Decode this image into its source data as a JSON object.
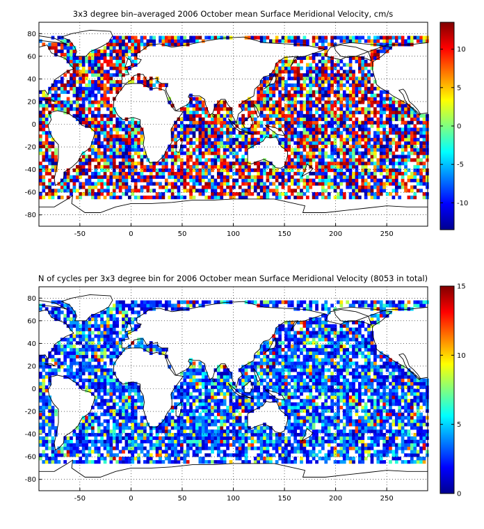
{
  "chart_data": [
    {
      "type": "heatmap",
      "title": "3x3 degree bin–averaged 2006 October mean Surface Meridional Velocity, cm/s",
      "xlabel": "",
      "ylabel": "",
      "xlim": [
        -90,
        290
      ],
      "ylim": [
        -90,
        90
      ],
      "x_ticks": [
        -50,
        0,
        50,
        100,
        150,
        200,
        250
      ],
      "y_ticks": [
        80,
        60,
        40,
        20,
        0,
        -20,
        -40,
        -60,
        -80
      ],
      "grid": true,
      "bin_size_degrees": 3,
      "colormap": "jet",
      "clim": [
        -13.5,
        13.5
      ],
      "colorbar_ticks": [
        10,
        5,
        0,
        -5,
        -10
      ],
      "coverage_lat": [
        -66,
        76
      ],
      "note_values": "noisy field of meridional velocities, mostly between -13 and 13 cm/s"
    },
    {
      "type": "heatmap",
      "title": "N of cycles per 3x3 degree bin for 2006 October mean Surface Meridional Velocity (8053 in total)",
      "xlabel": "",
      "ylabel": "",
      "xlim": [
        -90,
        290
      ],
      "ylim": [
        -90,
        90
      ],
      "x_ticks": [
        -50,
        0,
        50,
        100,
        150,
        200,
        250
      ],
      "y_ticks": [
        80,
        60,
        40,
        20,
        0,
        -20,
        -40,
        -60,
        -80
      ],
      "grid": true,
      "bin_size_degrees": 3,
      "colormap": "jet",
      "clim": [
        0,
        15
      ],
      "colorbar_ticks": [
        15,
        10,
        5,
        0
      ],
      "total_cycles": 8053,
      "coverage_lat": [
        -66,
        76
      ]
    }
  ]
}
